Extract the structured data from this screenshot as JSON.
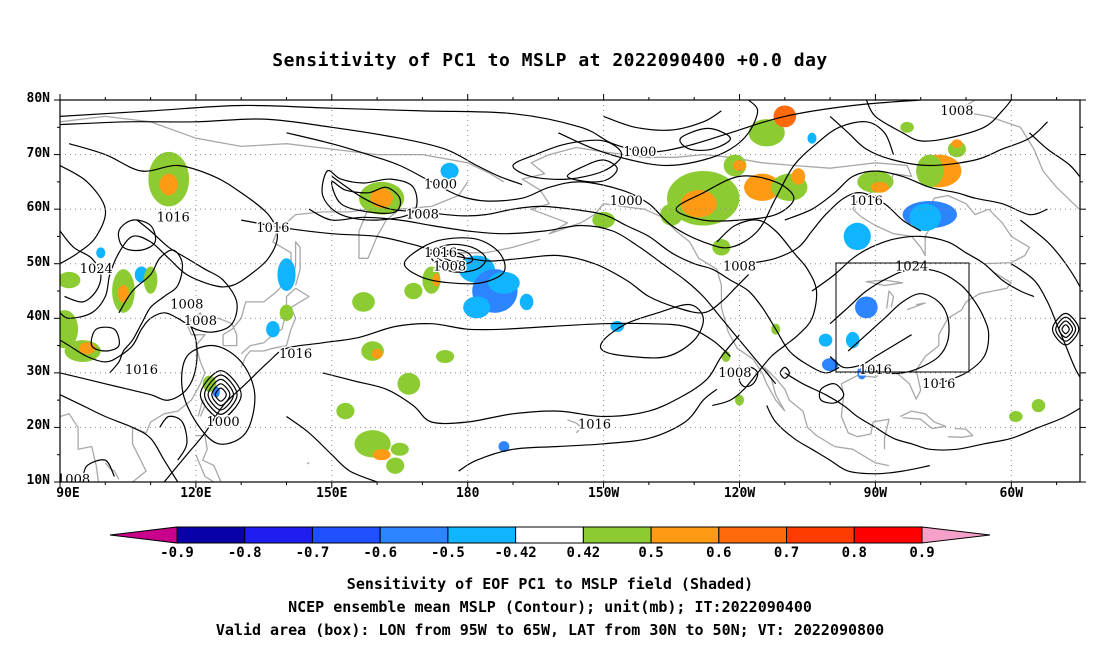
{
  "title": "Sensitivity of PC1 to MSLP at 2022090400 +0.0 day",
  "lat_labels": [
    "80N",
    "70N",
    "60N",
    "50N",
    "40N",
    "30N",
    "20N",
    "10N"
  ],
  "lon_labels": [
    "90E",
    "120E",
    "150E",
    "180",
    "150W",
    "120W",
    "90W",
    "60W"
  ],
  "contour_labels": [
    {
      "text": "1000",
      "lon": -142,
      "lat": 70.5
    },
    {
      "text": "1000",
      "lon": 174,
      "lat": 64.5
    },
    {
      "text": "1000",
      "lon": -145,
      "lat": 61.5
    },
    {
      "text": "1008",
      "lon": 170,
      "lat": 59
    },
    {
      "text": "1008",
      "lon": -72,
      "lat": 78
    },
    {
      "text": "1016",
      "lon": 115,
      "lat": 58.5
    },
    {
      "text": "1016",
      "lon": 137,
      "lat": 56.5
    },
    {
      "text": "1016",
      "lon": -92,
      "lat": 61.5
    },
    {
      "text": "1016",
      "lon": 174,
      "lat": 52
    },
    {
      "text": "1008",
      "lon": 176,
      "lat": 49.5
    },
    {
      "text": "1024",
      "lon": 98,
      "lat": 49
    },
    {
      "text": "1008",
      "lon": 118,
      "lat": 42.5
    },
    {
      "text": "1008",
      "lon": 121,
      "lat": 39.5
    },
    {
      "text": "1016",
      "lon": 142,
      "lat": 33.5
    },
    {
      "text": "1016",
      "lon": 108,
      "lat": 30.5
    },
    {
      "text": "1000",
      "lon": 126,
      "lat": 21
    },
    {
      "text": "1016",
      "lon": -152,
      "lat": 20.5
    },
    {
      "text": "1008",
      "lon": -120,
      "lat": 49.5
    },
    {
      "text": "1024",
      "lon": -82,
      "lat": 49.5
    },
    {
      "text": "1016",
      "lon": -90,
      "lat": 30.5
    },
    {
      "text": "1016",
      "lon": -76,
      "lat": 28
    },
    {
      "text": "1008",
      "lon": -121,
      "lat": 30
    },
    {
      "text": "1008",
      "lon": 93,
      "lat": 10.5
    }
  ],
  "colorbar": {
    "labels": [
      "-0.9",
      "-0.8",
      "-0.7",
      "-0.6",
      "-0.5",
      "-0.42",
      "0.42",
      "0.5",
      "0.6",
      "0.7",
      "0.8",
      "0.9"
    ],
    "colors": [
      "#c8008c",
      "#0a00a8",
      "#1e1ef0",
      "#1e50ff",
      "#2c84ff",
      "#10b4ff",
      "#ffffff",
      "#8ccc32",
      "#ff9a14",
      "#ff6a0a",
      "#ff3c00",
      "#ff0000",
      "#f5a0c8"
    ]
  },
  "caption": {
    "line1": "Sensitivity of EOF PC1 to MSLP field (Shaded)",
    "line2": "NCEP ensemble mean MSLP (Contour); unit(mb); IT:2022090400",
    "line3": "Valid area (box): LON from 95W to 65W, LAT from 30N to 50N; VT: 2022090800"
  }
}
